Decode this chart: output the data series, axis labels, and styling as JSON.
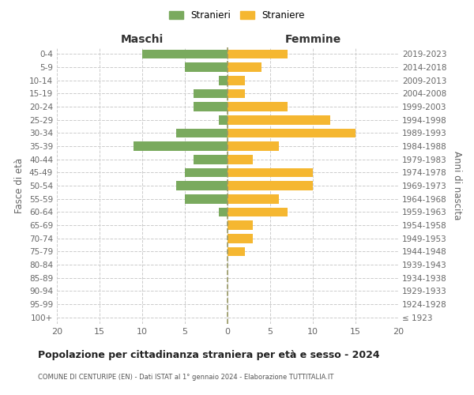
{
  "age_groups": [
    "100+",
    "95-99",
    "90-94",
    "85-89",
    "80-84",
    "75-79",
    "70-74",
    "65-69",
    "60-64",
    "55-59",
    "50-54",
    "45-49",
    "40-44",
    "35-39",
    "30-34",
    "25-29",
    "20-24",
    "15-19",
    "10-14",
    "5-9",
    "0-4"
  ],
  "birth_years": [
    "≤ 1923",
    "1924-1928",
    "1929-1933",
    "1934-1938",
    "1939-1943",
    "1944-1948",
    "1949-1953",
    "1954-1958",
    "1959-1963",
    "1964-1968",
    "1969-1973",
    "1974-1978",
    "1979-1983",
    "1984-1988",
    "1989-1993",
    "1994-1998",
    "1999-2003",
    "2004-2008",
    "2009-2013",
    "2014-2018",
    "2019-2023"
  ],
  "maschi": [
    0,
    0,
    0,
    0,
    0,
    0,
    0,
    0,
    1,
    5,
    6,
    5,
    4,
    11,
    6,
    1,
    4,
    4,
    1,
    5,
    10
  ],
  "femmine": [
    0,
    0,
    0,
    0,
    0,
    2,
    3,
    3,
    7,
    6,
    10,
    10,
    3,
    6,
    15,
    12,
    7,
    2,
    2,
    4,
    7
  ],
  "color_maschi": "#7aaa5e",
  "color_femmine": "#f5b731",
  "title": "Popolazione per cittadinanza straniera per età e sesso - 2024",
  "subtitle": "COMUNE DI CENTURIPE (EN) - Dati ISTAT al 1° gennaio 2024 - Elaborazione TUTTITALIA.IT",
  "xlabel_left": "Maschi",
  "xlabel_right": "Femmine",
  "ylabel_left": "Fasce di età",
  "ylabel_right": "Anni di nascita",
  "legend_maschi": "Stranieri",
  "legend_femmine": "Straniere",
  "xlim": 20,
  "background_color": "#ffffff",
  "grid_color": "#cccccc"
}
